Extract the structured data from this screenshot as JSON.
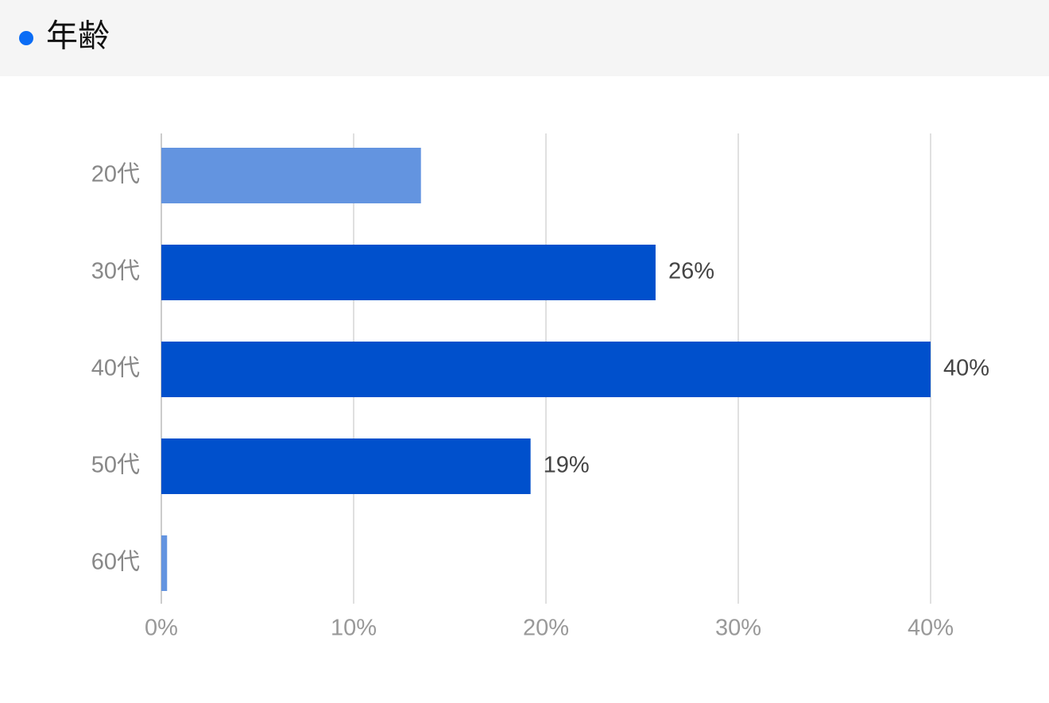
{
  "chart_data": {
    "type": "hbar",
    "title": "年齢",
    "categories": [
      "20代",
      "30代",
      "40代",
      "50代",
      "60代"
    ],
    "values": [
      13.5,
      25.7,
      40,
      19.2,
      0.3
    ],
    "value_labels": [
      null,
      "26%",
      "40%",
      "19%",
      null
    ],
    "colors": [
      "#6394e0",
      "#0050cc",
      "#0050cc",
      "#0050cc",
      "#6394e0"
    ],
    "title_dot_color": "#0a6cf5",
    "xlim": [
      0,
      40
    ],
    "xticks": [
      {
        "value": 0,
        "label": "0%"
      },
      {
        "value": 10,
        "label": "10%"
      },
      {
        "value": 20,
        "label": "20%"
      },
      {
        "value": 30,
        "label": "30%"
      },
      {
        "value": 40,
        "label": "40%"
      }
    ],
    "grid": true
  }
}
